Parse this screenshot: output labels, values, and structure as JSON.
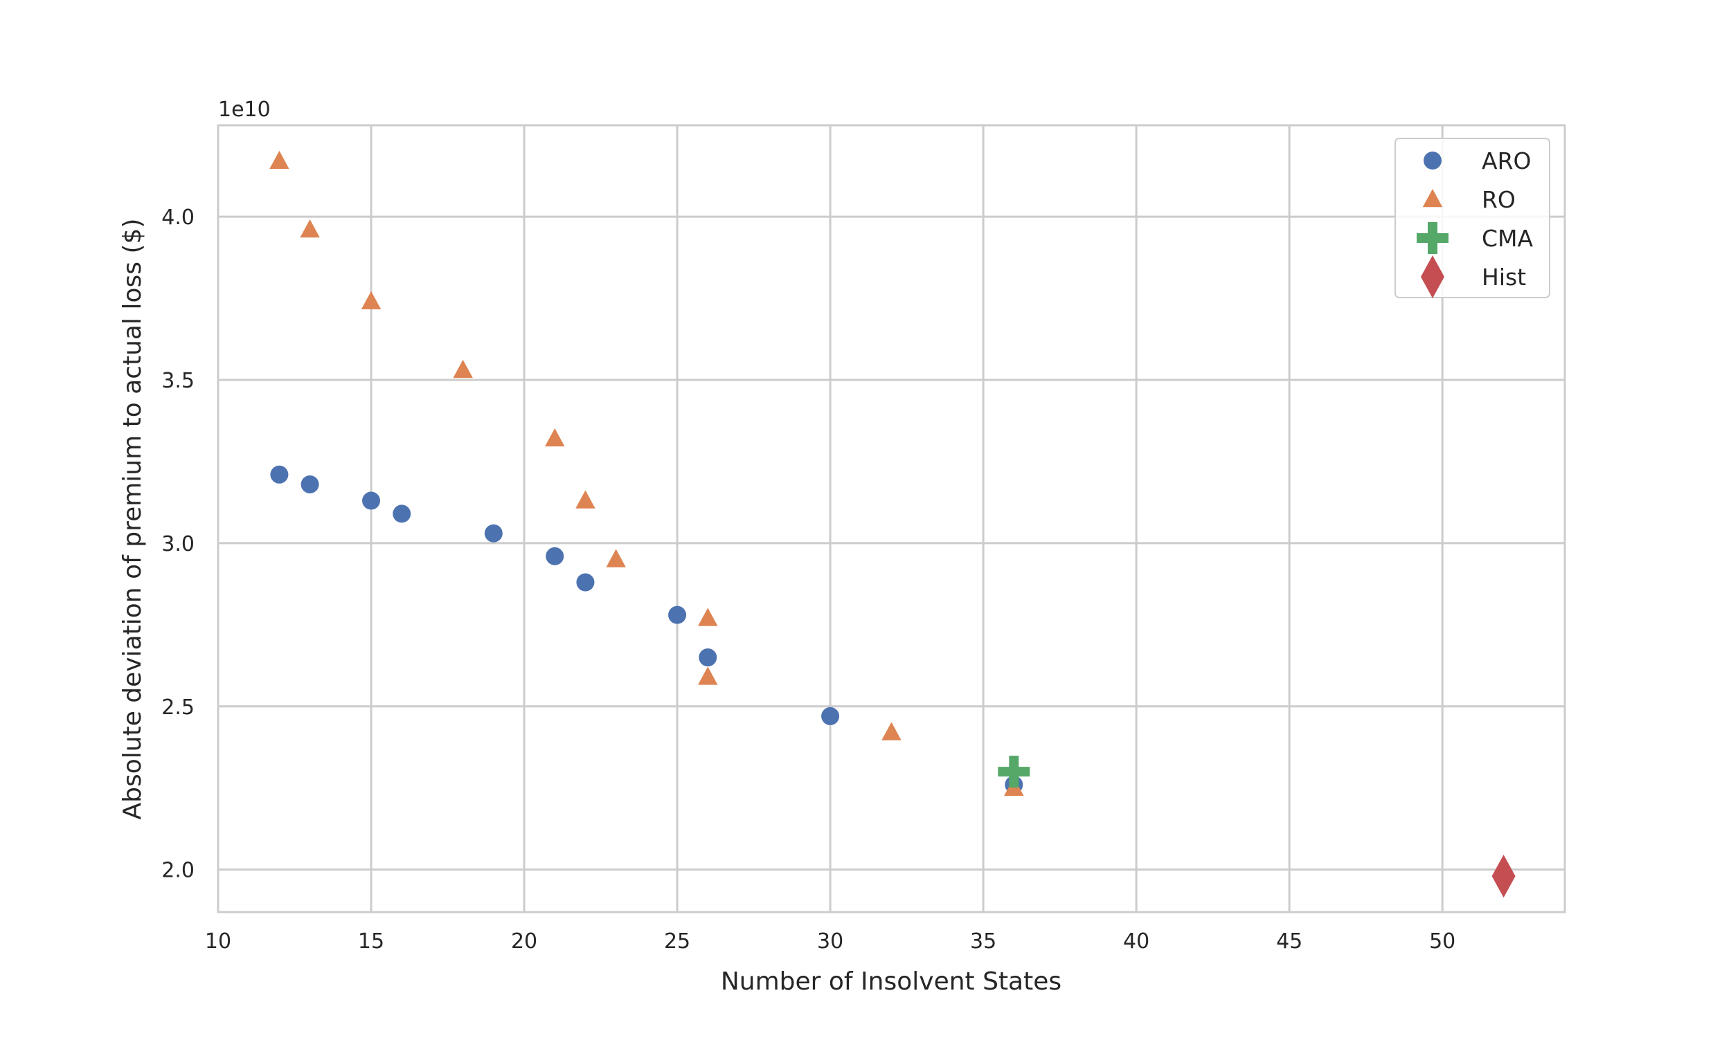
{
  "chart_data": {
    "type": "scatter",
    "title": "",
    "xlabel": "Number of Insolvent States",
    "ylabel": "Absolute deviation of premium to actual loss ($)",
    "offset_label": "1e10",
    "xlim": [
      10,
      54
    ],
    "ylim": [
      1.87,
      4.28
    ],
    "x_ticks": [
      10,
      15,
      20,
      25,
      30,
      35,
      40,
      45,
      50
    ],
    "x_tick_labels": [
      "10",
      "15",
      "20",
      "25",
      "30",
      "35",
      "40",
      "45",
      "50"
    ],
    "y_ticks": [
      2.0,
      2.5,
      3.0,
      3.5,
      4.0
    ],
    "y_tick_labels": [
      "2.0",
      "2.5",
      "3.0",
      "3.5",
      "4.0"
    ],
    "grid": true,
    "legend_position": "top-right",
    "series": [
      {
        "name": "ARO",
        "marker": "circle",
        "color": "#4c72b0",
        "x": [
          12,
          13,
          15,
          16,
          19,
          21,
          22,
          25,
          26,
          30,
          36
        ],
        "y": [
          3.21,
          3.18,
          3.13,
          3.09,
          3.03,
          2.96,
          2.88,
          2.78,
          2.65,
          2.47,
          2.26
        ]
      },
      {
        "name": "RO",
        "marker": "triangle",
        "color": "#dd8452",
        "x": [
          12,
          13,
          15,
          18,
          21,
          22,
          23,
          26,
          26,
          32,
          36
        ],
        "y": [
          4.17,
          3.96,
          3.74,
          3.53,
          3.32,
          3.13,
          2.95,
          2.77,
          2.59,
          2.42,
          2.25
        ]
      },
      {
        "name": "CMA",
        "marker": "plus",
        "color": "#55a868",
        "x": [
          36
        ],
        "y": [
          2.3
        ]
      },
      {
        "name": "Hist",
        "marker": "diamond",
        "color": "#c44e52",
        "x": [
          52
        ],
        "y": [
          1.98
        ]
      }
    ]
  }
}
